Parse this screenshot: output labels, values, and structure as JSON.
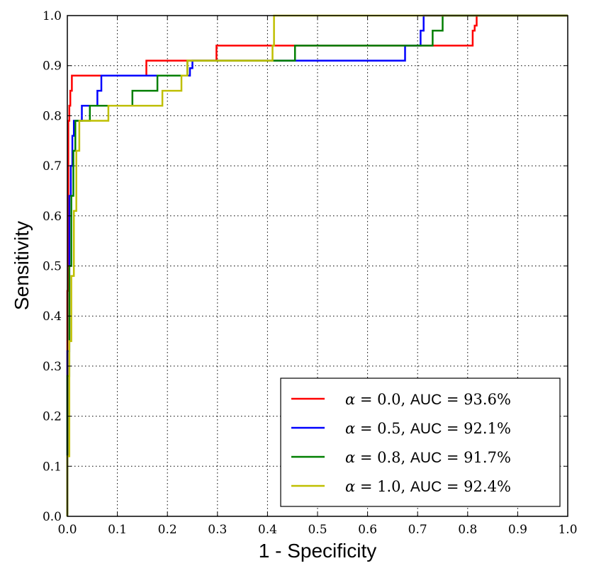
{
  "chart_data": {
    "type": "line",
    "xlabel": "1 - Specificity",
    "ylabel": "Sensitivity",
    "xlim": [
      0.0,
      1.0
    ],
    "ylim": [
      0.0,
      1.0
    ],
    "xticks": [
      "0.0",
      "0.1",
      "0.2",
      "0.3",
      "0.4",
      "0.5",
      "0.6",
      "0.7",
      "0.8",
      "0.9",
      "1.0"
    ],
    "yticks": [
      "0.0",
      "0.1",
      "0.2",
      "0.3",
      "0.4",
      "0.5",
      "0.6",
      "0.7",
      "0.8",
      "0.9",
      "1.0"
    ],
    "grid": true,
    "legend_position": "bottom-right",
    "series": [
      {
        "name": "alpha-0.0",
        "alpha": "0.0",
        "auc_label": "AUC",
        "auc": "93.6%",
        "color": "#ff0000",
        "x": [
          0.0,
          0.0,
          0.002,
          0.002,
          0.004,
          0.004,
          0.006,
          0.006,
          0.009,
          0.009,
          0.158,
          0.158,
          0.298,
          0.298,
          0.81,
          0.81,
          0.814,
          0.814,
          0.818,
          0.818,
          1.0
        ],
        "y": [
          0.0,
          0.45,
          0.45,
          0.79,
          0.79,
          0.82,
          0.82,
          0.85,
          0.85,
          0.88,
          0.88,
          0.91,
          0.91,
          0.94,
          0.94,
          0.97,
          0.97,
          0.98,
          0.98,
          1.0,
          1.0
        ]
      },
      {
        "name": "alpha-0.5",
        "alpha": "0.5",
        "auc_label": "AUC",
        "auc": "92.1%",
        "color": "#0000ff",
        "x": [
          0.0,
          0.0,
          0.004,
          0.004,
          0.007,
          0.007,
          0.01,
          0.01,
          0.013,
          0.013,
          0.016,
          0.016,
          0.029,
          0.029,
          0.036,
          0.036,
          0.06,
          0.06,
          0.068,
          0.068,
          0.245,
          0.245,
          0.25,
          0.25,
          0.455,
          0.455,
          0.675,
          0.675,
          0.706,
          0.706,
          0.712,
          0.712,
          1.0
        ],
        "y": [
          0.0,
          0.33,
          0.33,
          0.64,
          0.64,
          0.7,
          0.7,
          0.76,
          0.76,
          0.79,
          0.79,
          0.79,
          0.79,
          0.82,
          0.82,
          0.82,
          0.82,
          0.85,
          0.85,
          0.88,
          0.88,
          0.895,
          0.895,
          0.91,
          0.91,
          0.91,
          0.91,
          0.94,
          0.94,
          0.97,
          0.97,
          1.0,
          1.0
        ]
      },
      {
        "name": "alpha-0.8",
        "alpha": "0.8",
        "auc_label": "AUC",
        "auc": "91.7%",
        "color": "#007f00",
        "x": [
          0.0,
          0.0,
          0.004,
          0.004,
          0.008,
          0.008,
          0.012,
          0.012,
          0.016,
          0.016,
          0.045,
          0.045,
          0.13,
          0.13,
          0.18,
          0.18,
          0.24,
          0.24,
          0.41,
          0.41,
          0.455,
          0.455,
          0.73,
          0.73,
          0.75,
          0.75,
          1.0
        ],
        "y": [
          0.0,
          0.28,
          0.28,
          0.5,
          0.5,
          0.64,
          0.64,
          0.73,
          0.73,
          0.79,
          0.79,
          0.82,
          0.82,
          0.85,
          0.85,
          0.88,
          0.88,
          0.91,
          0.91,
          0.91,
          0.91,
          0.94,
          0.94,
          0.97,
          0.97,
          1.0,
          1.0
        ]
      },
      {
        "name": "alpha-1.0",
        "alpha": "1.0",
        "auc_label": "AUC",
        "auc": "92.4%",
        "color": "#bfbf00",
        "x": [
          0.0,
          0.0,
          0.004,
          0.004,
          0.008,
          0.008,
          0.013,
          0.013,
          0.018,
          0.018,
          0.024,
          0.024,
          0.082,
          0.082,
          0.19,
          0.19,
          0.228,
          0.228,
          0.24,
          0.24,
          0.41,
          0.41,
          0.413,
          0.413,
          0.545,
          0.545,
          1.0
        ],
        "y": [
          0.0,
          0.12,
          0.12,
          0.35,
          0.35,
          0.48,
          0.48,
          0.61,
          0.61,
          0.73,
          0.73,
          0.79,
          0.79,
          0.82,
          0.82,
          0.85,
          0.85,
          0.88,
          0.88,
          0.91,
          0.91,
          0.94,
          0.94,
          1.0,
          1.0,
          1.0,
          1.0
        ]
      }
    ]
  }
}
